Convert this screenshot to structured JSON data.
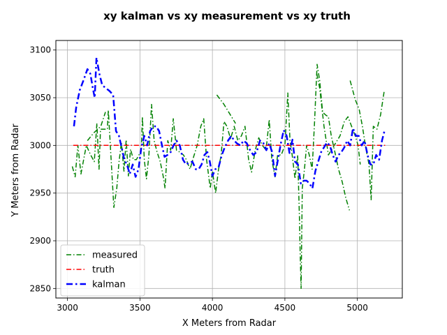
{
  "chart_data": {
    "type": "line",
    "title": "xy kalman vs xy measurement vs xy truth",
    "xlabel": "X Meters from Radar",
    "ylabel": "Y Meters from Radar",
    "xlim": [
      2920,
      5310
    ],
    "ylim": [
      2840,
      3110
    ],
    "xticks": [
      3000,
      3500,
      4000,
      4500,
      5000
    ],
    "yticks": [
      2850,
      2900,
      2950,
      3000,
      3050,
      3100
    ],
    "grid": true,
    "legend_position": "lower left",
    "series": [
      {
        "name": "measured",
        "color": "#008000",
        "dash": "dashdot",
        "width": 1.5,
        "points": [
          [
            3033,
            2978
          ],
          [
            3053,
            2967
          ],
          [
            3072,
            3000
          ],
          [
            3093,
            2970
          ],
          [
            3130,
            3000
          ],
          [
            3160,
            2990
          ],
          [
            3185,
            2983
          ],
          [
            3203,
            3023
          ],
          [
            3218,
            2975
          ],
          [
            3228,
            3017
          ],
          [
            3275,
            3017
          ],
          [
            3282,
            3037
          ],
          [
            3320,
            2935
          ],
          [
            3340,
            2955
          ],
          [
            3355,
            2982
          ],
          [
            3372,
            3003
          ],
          [
            3390,
            2973
          ],
          [
            3405,
            3006
          ],
          [
            3420,
            2968
          ],
          [
            3435,
            2996
          ],
          [
            3455,
            2985
          ],
          [
            3475,
            2985
          ],
          [
            3500,
            2992
          ],
          [
            3510,
            2997
          ],
          [
            3517,
            3030
          ],
          [
            3530,
            2985
          ],
          [
            3545,
            2965
          ],
          [
            3562,
            2990
          ],
          [
            3580,
            3043
          ],
          [
            3598,
            3005
          ],
          [
            3618,
            2993
          ],
          [
            3640,
            2983
          ],
          [
            3660,
            2968
          ],
          [
            3673,
            2955
          ],
          [
            3692,
            3005
          ],
          [
            3712,
            2995
          ],
          [
            3730,
            3028
          ],
          [
            3752,
            2995
          ],
          [
            3775,
            2993
          ],
          [
            3800,
            2990
          ],
          [
            3820,
            2985
          ],
          [
            3845,
            2975
          ],
          [
            3870,
            2988
          ],
          [
            3895,
            3000
          ],
          [
            3920,
            3020
          ],
          [
            3940,
            3028
          ],
          [
            3960,
            2985
          ],
          [
            3985,
            2955
          ],
          [
            4000,
            2973
          ],
          [
            4022,
            2950
          ],
          [
            4042,
            2975
          ],
          [
            4060,
            2990
          ],
          [
            4080,
            3025
          ],
          [
            4100,
            3020
          ],
          [
            4125,
            3007
          ],
          [
            4150,
            3020
          ],
          [
            4175,
            3005
          ],
          [
            4200,
            3010
          ],
          [
            4225,
            3020
          ],
          [
            4250,
            2985
          ],
          [
            4270,
            2972
          ],
          [
            4295,
            2995
          ],
          [
            4320,
            3008
          ],
          [
            4345,
            3000
          ],
          [
            4370,
            2995
          ],
          [
            4392,
            3027
          ],
          [
            4410,
            2985
          ],
          [
            4432,
            2967
          ],
          [
            4450,
            2990
          ],
          [
            4475,
            2990
          ],
          [
            4500,
            3000
          ],
          [
            4520,
            3055
          ],
          [
            4535,
            3005
          ],
          [
            4550,
            2990
          ],
          [
            4570,
            2965
          ],
          [
            4588,
            2990
          ],
          [
            4600,
            2925
          ],
          [
            4605,
            2890
          ],
          [
            4612,
            2850
          ],
          [
            4620,
            2955
          ],
          [
            4635,
            2975
          ],
          [
            4650,
            3000
          ],
          [
            4668,
            2990
          ],
          [
            4688,
            2975
          ],
          [
            4705,
            3025
          ],
          [
            4722,
            3085
          ],
          [
            4740,
            3068
          ],
          [
            4760,
            3035
          ],
          [
            4780,
            3032
          ],
          [
            4800,
            3030
          ],
          [
            4820,
            3010
          ],
          [
            4845,
            2993
          ],
          [
            4870,
            2975
          ],
          [
            4895,
            2962
          ],
          [
            4920,
            2945
          ],
          [
            4945,
            2932
          ]
        ]
      },
      {
        "name": "",
        "color": "#008000",
        "dash": "dashdot",
        "width": 1.5,
        "points": [
          [
            3138,
            3005
          ],
          [
            3180,
            3013
          ],
          [
            3230,
            3020
          ],
          [
            3262,
            3035
          ]
        ]
      },
      {
        "name": "",
        "color": "#008000",
        "dash": "dashdot",
        "width": 1.5,
        "points": [
          [
            4030,
            3053
          ],
          [
            4080,
            3043
          ],
          [
            4120,
            3033
          ],
          [
            4160,
            3023
          ]
        ]
      },
      {
        "name": "",
        "color": "#008000",
        "dash": "dashdot",
        "width": 1.5,
        "points": [
          [
            4720,
            3075
          ],
          [
            4740,
            3060
          ],
          [
            4770,
            3020
          ],
          [
            4800,
            2990
          ],
          [
            4840,
            3000
          ],
          [
            4880,
            3010
          ],
          [
            4910,
            3025
          ],
          [
            4935,
            3030
          ],
          [
            4960,
            3020
          ],
          [
            4985,
            3010
          ],
          [
            5005,
            3000
          ],
          [
            5020,
            2980
          ]
        ]
      },
      {
        "name": "",
        "color": "#008000",
        "dash": "dashdot",
        "width": 1.5,
        "points": [
          [
            4950,
            3068
          ],
          [
            4985,
            3048
          ],
          [
            5012,
            3038
          ],
          [
            5035,
            3020
          ],
          [
            5055,
            3000
          ],
          [
            5080,
            2980
          ],
          [
            5095,
            2943
          ],
          [
            5110,
            3020
          ],
          [
            5135,
            3017
          ],
          [
            5160,
            3032
          ],
          [
            5185,
            3057
          ]
        ]
      },
      {
        "name": "truth",
        "color": "#ff0000",
        "dash": "dashdot",
        "width": 1.5,
        "points": [
          [
            3040,
            3000
          ],
          [
            5195,
            3000
          ]
        ]
      },
      {
        "name": "kalman",
        "color": "#0000ff",
        "dash": "dashdot",
        "width": 2.5,
        "points": [
          [
            3045,
            3020
          ],
          [
            3060,
            3040
          ],
          [
            3085,
            3058
          ],
          [
            3110,
            3068
          ],
          [
            3138,
            3080
          ],
          [
            3158,
            3075
          ],
          [
            3175,
            3060
          ],
          [
            3188,
            3050
          ],
          [
            3200,
            3092
          ],
          [
            3220,
            3075
          ],
          [
            3240,
            3063
          ],
          [
            3265,
            3060
          ],
          [
            3290,
            3057
          ],
          [
            3315,
            3053
          ],
          [
            3335,
            3015
          ],
          [
            3355,
            3010
          ],
          [
            3375,
            2997
          ],
          [
            3392,
            2985
          ],
          [
            3410,
            2980
          ],
          [
            3430,
            2970
          ],
          [
            3450,
            2980
          ],
          [
            3470,
            2967
          ],
          [
            3490,
            2975
          ],
          [
            3510,
            2998
          ],
          [
            3530,
            3010
          ],
          [
            3550,
            3000
          ],
          [
            3570,
            3015
          ],
          [
            3592,
            3020
          ],
          [
            3612,
            3020
          ],
          [
            3632,
            3015
          ],
          [
            3652,
            3000
          ],
          [
            3670,
            2988
          ],
          [
            3690,
            2990
          ],
          [
            3712,
            2993
          ],
          [
            3732,
            3000
          ],
          [
            3752,
            3005
          ],
          [
            3775,
            3000
          ],
          [
            3797,
            2985
          ],
          [
            3818,
            2980
          ],
          [
            3840,
            2982
          ],
          [
            3862,
            2983
          ],
          [
            3885,
            2975
          ],
          [
            3905,
            2975
          ],
          [
            3925,
            2980
          ],
          [
            3945,
            2990
          ],
          [
            3965,
            2993
          ],
          [
            3982,
            2983
          ],
          [
            4000,
            2968
          ],
          [
            4020,
            2975
          ],
          [
            4042,
            2977
          ],
          [
            4065,
            2990
          ],
          [
            4085,
            2998
          ],
          [
            4108,
            3005
          ],
          [
            4130,
            3010
          ],
          [
            4150,
            3005
          ],
          [
            4170,
            3002
          ],
          [
            4192,
            3000
          ],
          [
            4215,
            3005
          ],
          [
            4238,
            3002
          ],
          [
            4260,
            2995
          ],
          [
            4282,
            2990
          ],
          [
            4305,
            2993
          ],
          [
            4328,
            3005
          ],
          [
            4350,
            3003
          ],
          [
            4372,
            2995
          ],
          [
            4392,
            3002
          ],
          [
            4412,
            2993
          ],
          [
            4432,
            2968
          ],
          [
            4452,
            2985
          ],
          [
            4472,
            3002
          ],
          [
            4492,
            3016
          ],
          [
            4512,
            3010
          ],
          [
            4532,
            2992
          ],
          [
            4552,
            3006
          ],
          [
            4570,
            2983
          ],
          [
            4590,
            2980
          ],
          [
            4610,
            2960
          ],
          [
            4630,
            2963
          ],
          [
            4650,
            2963
          ],
          [
            4670,
            2960
          ],
          [
            4690,
            2955
          ],
          [
            4710,
            2973
          ],
          [
            4730,
            2983
          ],
          [
            4750,
            2993
          ],
          [
            4770,
            2998
          ],
          [
            4790,
            3003
          ],
          [
            4810,
            3000
          ],
          [
            4830,
            2990
          ],
          [
            4850,
            2983
          ],
          [
            4870,
            2990
          ],
          [
            4890,
            2993
          ],
          [
            4910,
            2998
          ],
          [
            4930,
            3005
          ],
          [
            4950,
            3000
          ],
          [
            4970,
            3018
          ],
          [
            4990,
            3010
          ],
          [
            5010,
            3010
          ],
          [
            5030,
            3000
          ],
          [
            5050,
            3005
          ],
          [
            5070,
            2990
          ],
          [
            5090,
            2980
          ],
          [
            5110,
            2980
          ],
          [
            5130,
            2990
          ],
          [
            5150,
            2985
          ],
          [
            5170,
            3005
          ],
          [
            5190,
            3017
          ]
        ]
      }
    ]
  }
}
